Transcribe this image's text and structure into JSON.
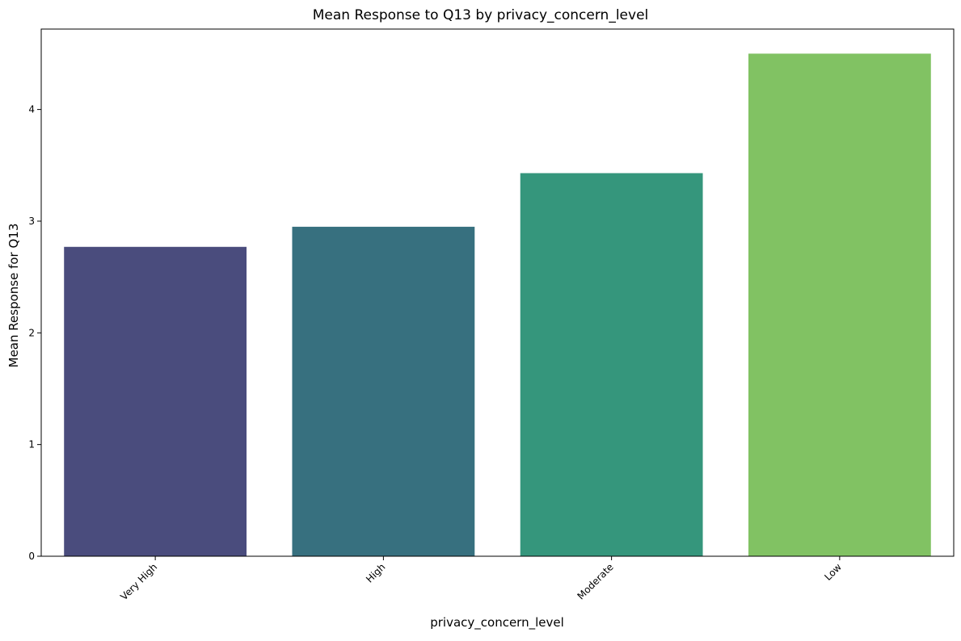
{
  "chart_data": {
    "type": "bar",
    "title": "Mean Response to Q13 by privacy_concern_level",
    "xlabel": "privacy_concern_level",
    "ylabel": "Mean Response for Q13",
    "categories": [
      "Very High",
      "High",
      "Moderate",
      "Low"
    ],
    "values": [
      2.77,
      2.95,
      3.43,
      4.5
    ],
    "colors": [
      "#4a4c7d",
      "#37707f",
      "#35967c",
      "#81c263"
    ],
    "ylim": [
      0,
      4.72
    ],
    "yticks": [
      0,
      1,
      2,
      3,
      4
    ],
    "grid": false,
    "legend": "none"
  }
}
